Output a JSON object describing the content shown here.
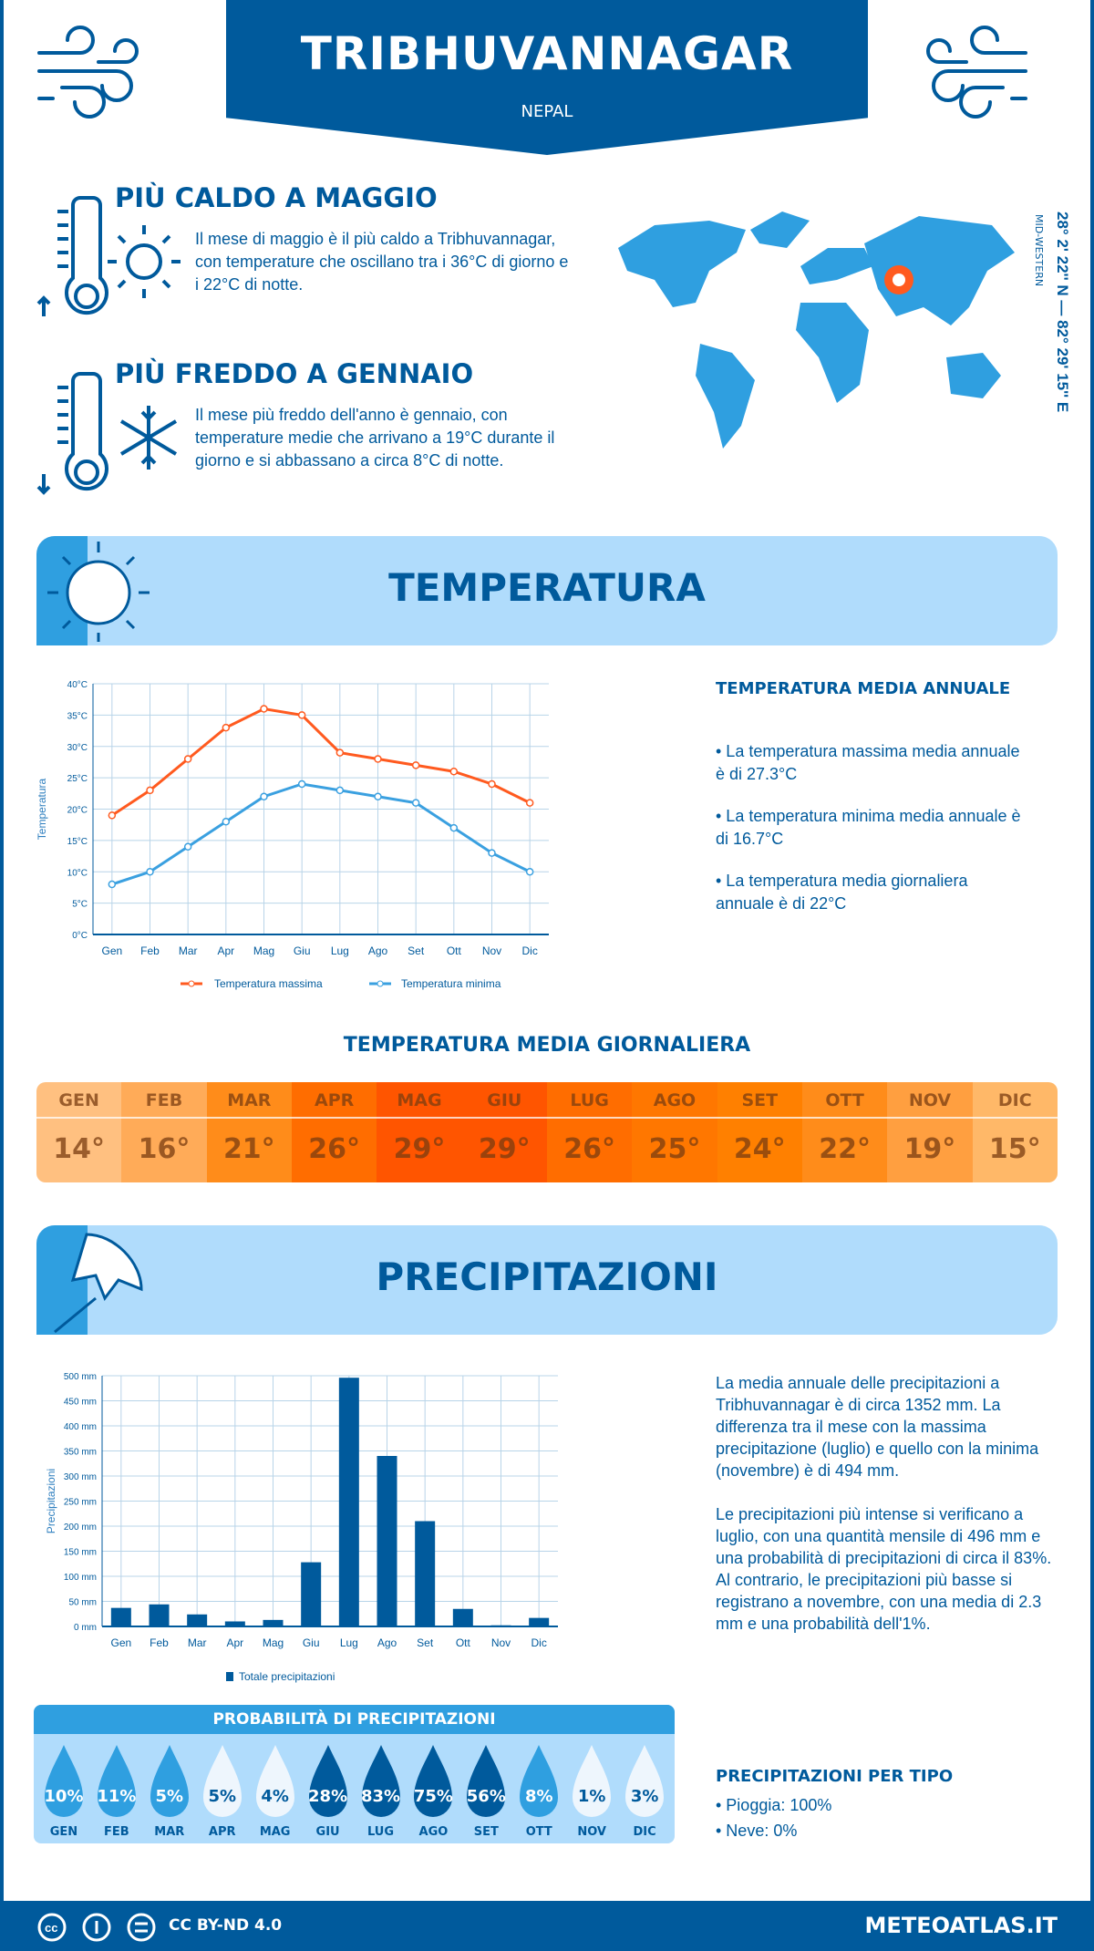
{
  "header": {
    "title": "TRIBHUVANNAGAR",
    "country": "NEPAL"
  },
  "hot": {
    "title": "PIÙ CALDO A MAGGIO",
    "text": "Il mese di maggio è il più caldo a Tribhuvannagar, con temperature che oscillano tra i 36°C di giorno e i 22°C di notte."
  },
  "cold": {
    "title": "PIÙ FREDDO A GENNAIO",
    "text": "Il mese più freddo dell'anno è gennaio, con temperature medie che arrivano a 19°C durante il giorno e si abbassano a circa 8°C di notte."
  },
  "map": {
    "coords": "28° 2' 22'' N — 82° 29' 15'' E",
    "region": "MID-WESTERN"
  },
  "temperature": {
    "section_title": "TEMPERATURA",
    "annual_title": "TEMPERATURA MEDIA ANNUALE",
    "annual_items": [
      "• La temperatura massima media annuale è di 27.3°C",
      "• La temperatura minima media annuale è di 16.7°C",
      "• La temperatura media giornaliera annuale è di 22°C"
    ],
    "daily_title": "TEMPERATURA MEDIA GIORNALIERA",
    "daily": [
      {
        "m": "GEN",
        "v": "14°",
        "c": "#ffc080"
      },
      {
        "m": "FEB",
        "v": "16°",
        "c": "#ffab58"
      },
      {
        "m": "MAR",
        "v": "21°",
        "c": "#ff8c1a"
      },
      {
        "m": "APR",
        "v": "26°",
        "c": "#ff6d00"
      },
      {
        "m": "MAG",
        "v": "29°",
        "c": "#ff5500"
      },
      {
        "m": "GIU",
        "v": "29°",
        "c": "#ff5500"
      },
      {
        "m": "LUG",
        "v": "26°",
        "c": "#ff6d00"
      },
      {
        "m": "AGO",
        "v": "25°",
        "c": "#ff7700"
      },
      {
        "m": "SET",
        "v": "24°",
        "c": "#ff8000"
      },
      {
        "m": "OTT",
        "v": "22°",
        "c": "#ff8c1a"
      },
      {
        "m": "NOV",
        "v": "19°",
        "c": "#ff9f40"
      },
      {
        "m": "DIC",
        "v": "15°",
        "c": "#ffb868"
      }
    ]
  },
  "chart_data": [
    {
      "type": "line",
      "ylabel": "Temperatura",
      "categories": [
        "Gen",
        "Feb",
        "Mar",
        "Apr",
        "Mag",
        "Giu",
        "Lug",
        "Ago",
        "Set",
        "Ott",
        "Nov",
        "Dic"
      ],
      "ylim": [
        0,
        40
      ],
      "yticks": [
        "0°C",
        "5°C",
        "10°C",
        "15°C",
        "20°C",
        "25°C",
        "30°C",
        "35°C",
        "40°C"
      ],
      "grid": true,
      "legend": "bottom",
      "series": [
        {
          "name": "Temperatura massima",
          "color": "#ff5a1f",
          "values": [
            19,
            23,
            28,
            33,
            36,
            35,
            29,
            28,
            27,
            26,
            24,
            21
          ]
        },
        {
          "name": "Temperatura minima",
          "color": "#3aa0e0",
          "values": [
            8,
            10,
            14,
            18,
            22,
            24,
            23,
            22,
            21,
            17,
            13,
            10
          ]
        }
      ]
    },
    {
      "type": "bar",
      "ylabel": "Precipitazioni",
      "categories": [
        "Gen",
        "Feb",
        "Mar",
        "Apr",
        "Mag",
        "Giu",
        "Lug",
        "Ago",
        "Set",
        "Ott",
        "Nov",
        "Dic"
      ],
      "ylim": [
        0,
        500
      ],
      "yticks": [
        "0 mm",
        "50 mm",
        "100 mm",
        "150 mm",
        "200 mm",
        "250 mm",
        "300 mm",
        "350 mm",
        "400 mm",
        "450 mm",
        "500 mm"
      ],
      "grid": true,
      "legend": "bottom",
      "series": [
        {
          "name": "Totale precipitazioni",
          "color": "#005a9c",
          "values": [
            37,
            44,
            24,
            10,
            13,
            128,
            496,
            340,
            210,
            35,
            2.3,
            17
          ]
        }
      ]
    }
  ],
  "precipitation": {
    "section_title": "PRECIPITAZIONI",
    "text1": "La media annuale delle precipitazioni a Tribhuvannagar è di circa 1352 mm. La differenza tra il mese con la massima precipitazione (luglio) e quello con la minima (novembre) è di 494 mm.",
    "text2": "Le precipitazioni più intense si verificano a luglio, con una quantità mensile di 496 mm e una probabilità di precipitazioni di circa il 83%. Al contrario, le precipitazioni più basse si registrano a novembre, con una media di 2.3 mm e una probabilità dell'1%.",
    "prob_title": "PROBABILITÀ DI PRECIPITAZIONI",
    "prob": [
      {
        "m": "GEN",
        "v": "10%",
        "level": "mid"
      },
      {
        "m": "FEB",
        "v": "11%",
        "level": "mid"
      },
      {
        "m": "MAR",
        "v": "5%",
        "level": "mid"
      },
      {
        "m": "APR",
        "v": "5%",
        "level": "light"
      },
      {
        "m": "MAG",
        "v": "4%",
        "level": "light"
      },
      {
        "m": "GIU",
        "v": "28%",
        "level": "dark"
      },
      {
        "m": "LUG",
        "v": "83%",
        "level": "dark"
      },
      {
        "m": "AGO",
        "v": "75%",
        "level": "dark"
      },
      {
        "m": "SET",
        "v": "56%",
        "level": "dark"
      },
      {
        "m": "OTT",
        "v": "8%",
        "level": "mid"
      },
      {
        "m": "NOV",
        "v": "1%",
        "level": "light"
      },
      {
        "m": "DIC",
        "v": "3%",
        "level": "light"
      }
    ],
    "type_title": "PRECIPITAZIONI PER TIPO",
    "types": [
      "• Pioggia: 100%",
      "• Neve: 0%"
    ]
  },
  "colors": {
    "dark": "#005a9c",
    "mid": "#2f9fe0",
    "light": "#eef6fd",
    "band": "#b0dcfc"
  },
  "footer": {
    "license": "CC BY-ND 4.0",
    "site": "METEOATLAS.IT"
  }
}
